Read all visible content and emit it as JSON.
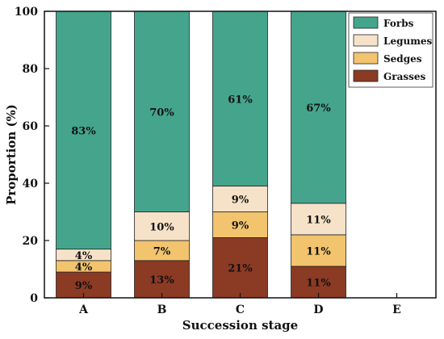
{
  "chart_data": {
    "type": "bar",
    "stacked": true,
    "categories": [
      "A",
      "B",
      "C",
      "D",
      "E"
    ],
    "xlabel": "Succession stage",
    "ylabel": "Proportion (%)",
    "ylim": [
      0,
      100
    ],
    "yticks": [
      0,
      20,
      40,
      60,
      80,
      100
    ],
    "legend_position": "top-right",
    "series": [
      {
        "name": "Grasses",
        "color": "#8b3a24",
        "values": [
          9,
          13,
          21,
          11,
          null
        ],
        "labels": [
          "9%",
          "13%",
          "21%",
          "11%",
          ""
        ]
      },
      {
        "name": "Sedges",
        "color": "#f2c46e",
        "values": [
          4,
          7,
          9,
          11,
          null
        ],
        "labels": [
          "4%",
          "7%",
          "9%",
          "11%",
          ""
        ]
      },
      {
        "name": "Legumes",
        "color": "#f6e2c8",
        "values": [
          4,
          10,
          9,
          11,
          null
        ],
        "labels": [
          "4%",
          "10%",
          "9%",
          "11%",
          ""
        ]
      },
      {
        "name": "Forbs",
        "color": "#45a58c",
        "values": [
          83,
          70,
          61,
          67,
          null
        ],
        "labels": [
          "83%",
          "70%",
          "61%",
          "67%",
          ""
        ]
      }
    ],
    "legend_order": [
      "Forbs",
      "Legumes",
      "Sedges",
      "Grasses"
    ]
  }
}
